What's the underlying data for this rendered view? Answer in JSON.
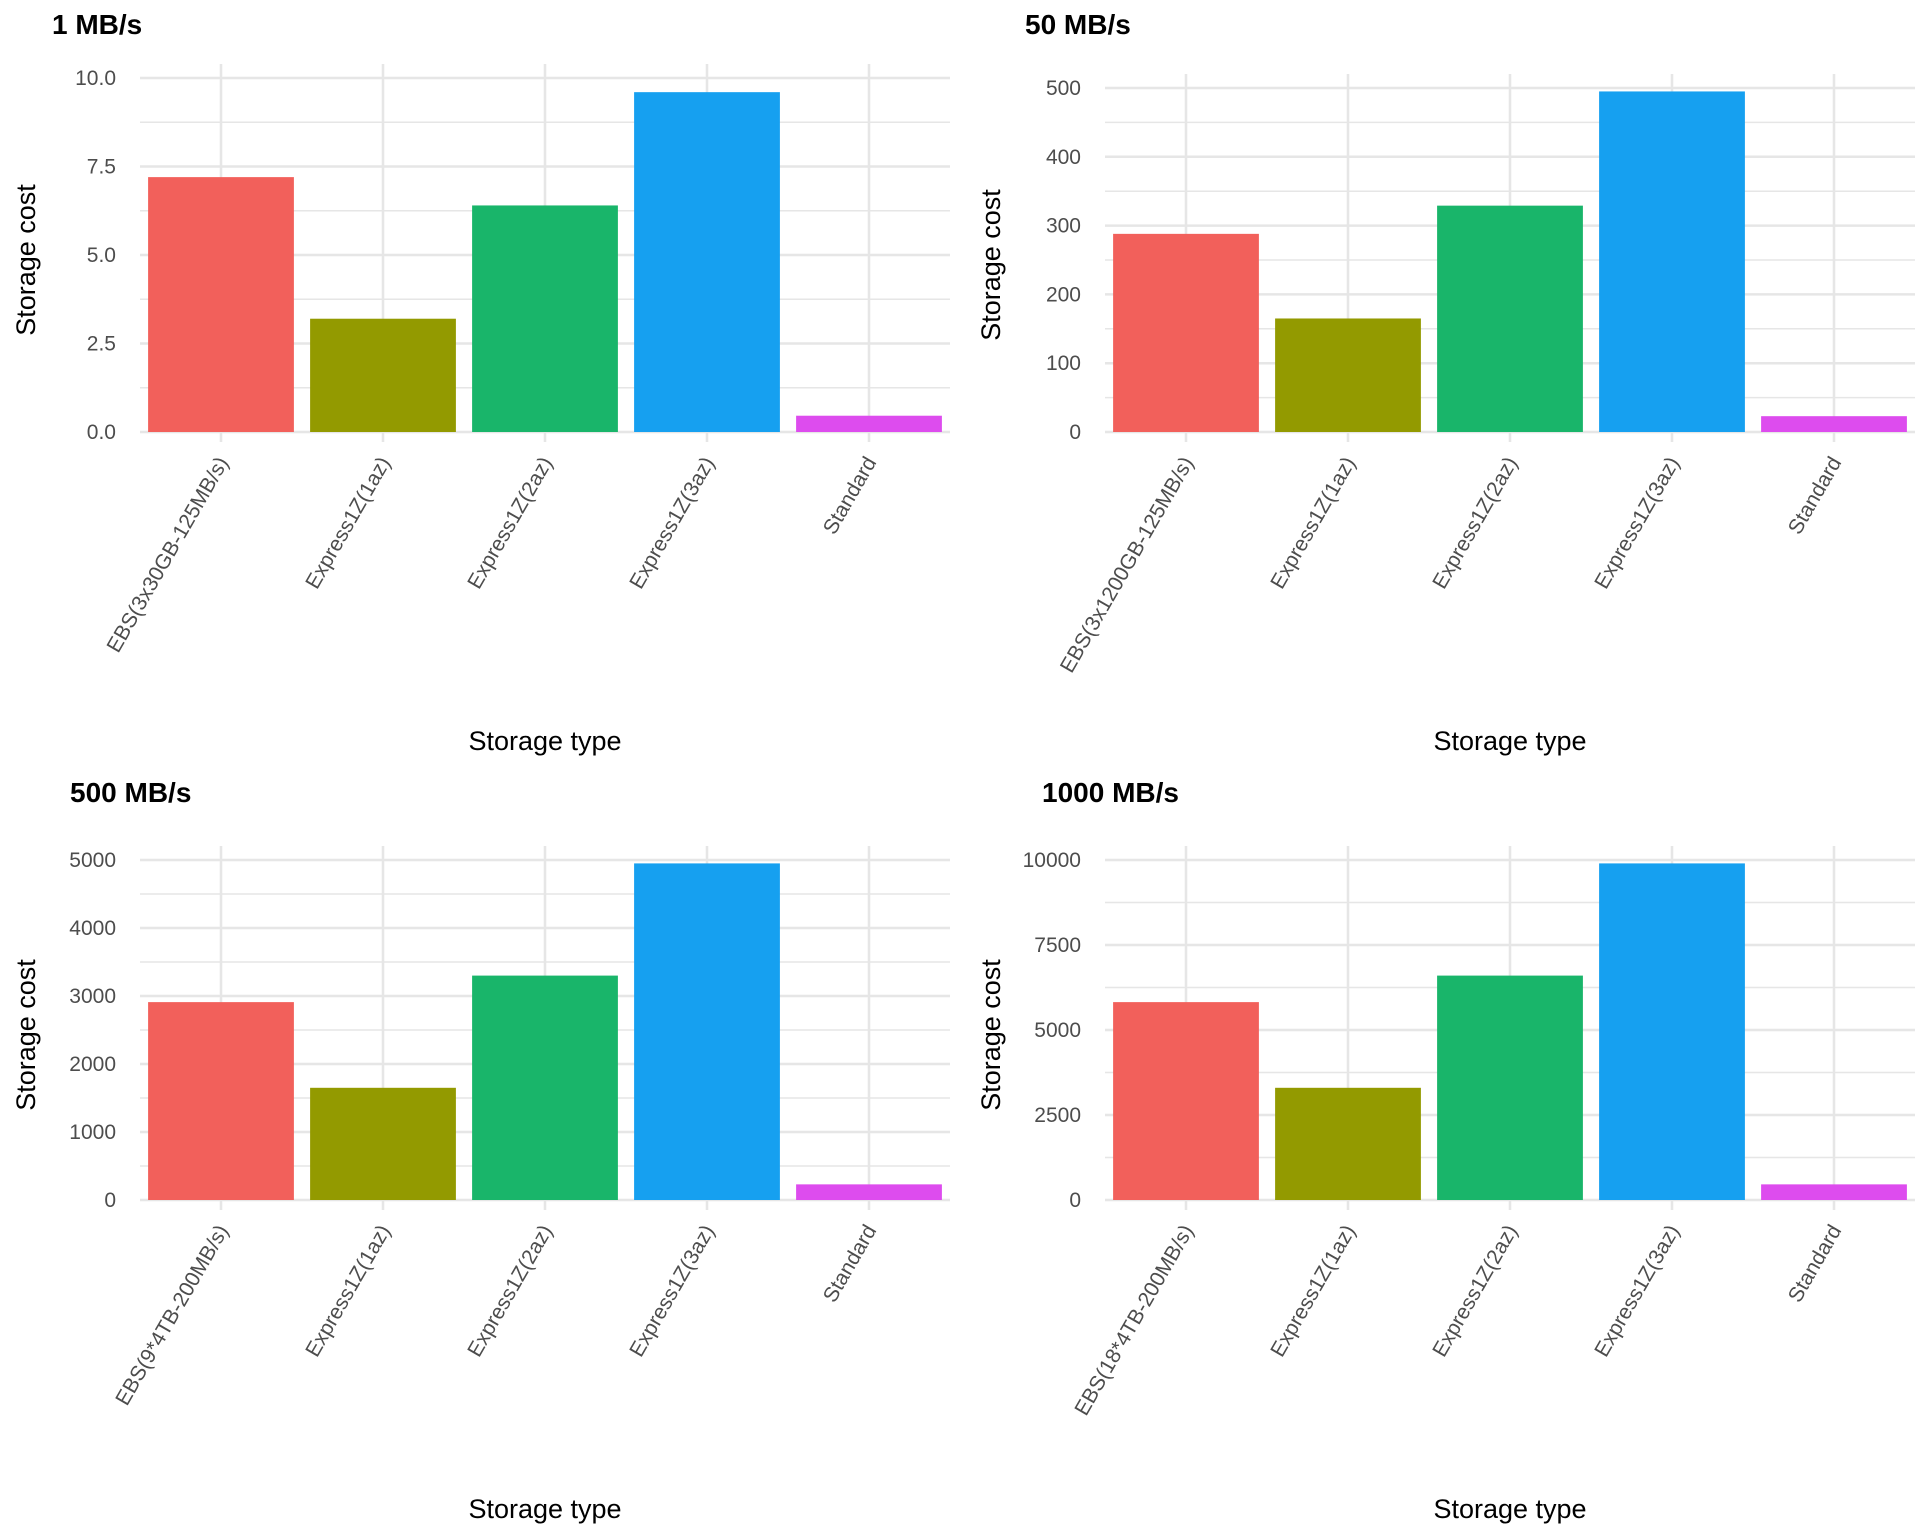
{
  "colors": {
    "series": [
      "#F2605B",
      "#939A00",
      "#19B56A",
      "#16A0F0",
      "#DD4CEE"
    ],
    "grid": "#E6E6E6",
    "text": "#4D4D4D"
  },
  "chart_data": [
    {
      "type": "bar",
      "title": "1 MB/s",
      "xlabel": "Storage type",
      "ylabel": "Storage cost",
      "categories": [
        "EBS(3x30GB-125MB/s)",
        "Express1Z(1az)",
        "Express1Z(2az)",
        "Express1Z(3az)",
        "Standard"
      ],
      "values": [
        7.2,
        3.2,
        6.4,
        9.6,
        0.46
      ],
      "ylim": [
        0,
        10
      ],
      "yticks": [
        0,
        2.5,
        5,
        7.5,
        10
      ],
      "ytick_labels": [
        "0.0",
        "2.5",
        "5.0",
        "7.5",
        "10.0"
      ],
      "grid": true,
      "legend": "none"
    },
    {
      "type": "bar",
      "title": "50 MB/s",
      "xlabel": "Storage type",
      "ylabel": "Storage cost",
      "categories": [
        "EBS(3x1200GB-125MB/s)",
        "Express1Z(1az)",
        "Express1Z(2az)",
        "Express1Z(3az)",
        "Standard"
      ],
      "values": [
        288,
        165,
        329,
        495,
        23
      ],
      "ylim": [
        0,
        500
      ],
      "yticks": [
        0,
        100,
        200,
        300,
        400,
        500
      ],
      "ytick_labels": [
        "0",
        "100",
        "200",
        "300",
        "400",
        "500"
      ],
      "grid": true,
      "legend": "none"
    },
    {
      "type": "bar",
      "title": "500 MB/s",
      "xlabel": "Storage type",
      "ylabel": "Storage cost",
      "categories": [
        "EBS(9*4TB-200MB/s)",
        "Express1Z(1az)",
        "Express1Z(2az)",
        "Express1Z(3az)",
        "Standard"
      ],
      "values": [
        2910,
        1650,
        3300,
        4950,
        230
      ],
      "ylim": [
        0,
        5000
      ],
      "yticks": [
        0,
        1000,
        2000,
        3000,
        4000,
        5000
      ],
      "ytick_labels": [
        "0",
        "1000",
        "2000",
        "3000",
        "4000",
        "5000"
      ],
      "grid": true,
      "legend": "none"
    },
    {
      "type": "bar",
      "title": "1000 MB/s",
      "xlabel": "Storage type",
      "ylabel": "Storage cost",
      "categories": [
        "EBS(18*4TB-200MB/s)",
        "Express1Z(1az)",
        "Express1Z(2az)",
        "Express1Z(3az)",
        "Standard"
      ],
      "values": [
        5820,
        3300,
        6600,
        9900,
        460
      ],
      "ylim": [
        0,
        10000
      ],
      "yticks": [
        0,
        2500,
        5000,
        7500,
        10000
      ],
      "ytick_labels": [
        "0",
        "2500",
        "5000",
        "7500",
        "10000"
      ],
      "grid": true,
      "legend": "none"
    }
  ]
}
